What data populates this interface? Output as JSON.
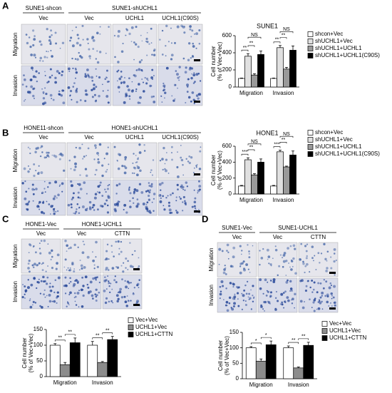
{
  "panels": [
    {
      "letter": "A",
      "groups": [
        "SUNE1-shcon",
        "SUNE1-shUCHL1"
      ],
      "columns": [
        "Vec",
        "Vec",
        "UCHL1",
        "UCHL1(C90S)"
      ],
      "rows": [
        "Migration",
        "Invasion"
      ]
    },
    {
      "letter": "B",
      "groups": [
        "HONE11-shcon",
        "HONE1-shUCHL1"
      ],
      "columns": [
        "Vec",
        "Vec",
        "UCHL1",
        "UCHL1(C90S)"
      ],
      "rows": [
        "Migration",
        "Invasion"
      ]
    },
    {
      "letter": "C",
      "groups": [
        "HONE1-Vec",
        "HONE1-UCHL1"
      ],
      "columns": [
        "Vec",
        "Vec",
        "CTTN"
      ],
      "rows": [
        "Migration",
        "Invasion"
      ]
    },
    {
      "letter": "D",
      "groups": [
        "SUNE1-Vec",
        "SUNE1-UCHL1"
      ],
      "columns": [
        "Vec",
        "Vec",
        "CTTN"
      ],
      "rows": [
        "Migration",
        "Invasion"
      ]
    }
  ],
  "chart_data": [
    {
      "type": "bar",
      "title": "SUNE1",
      "ylabel": [
        "Cell number",
        "(% of Vec+Vec)"
      ],
      "categories": [
        "Migration",
        "Invasion"
      ],
      "ylim": [
        0,
        600
      ],
      "yticks": [
        0,
        200,
        400,
        600
      ],
      "series": [
        {
          "name": "shcon+Vec",
          "color": "#ffffff",
          "values": [
            100,
            100
          ],
          "errors": [
            5,
            5
          ]
        },
        {
          "name": "shUCHL1+Vec",
          "color": "#e0e0e0",
          "values": [
            360,
            460
          ],
          "errors": [
            30,
            25
          ]
        },
        {
          "name": "shUCHL1+UCHL1",
          "color": "#9a9a9a",
          "values": [
            140,
            210
          ],
          "errors": [
            15,
            20
          ]
        },
        {
          "name": "shUCHL1+UCHL1(C90S)",
          "color": "#000000",
          "values": [
            380,
            430
          ],
          "errors": [
            40,
            50
          ]
        }
      ],
      "annotations": [
        "**",
        "**",
        "NS",
        "**",
        "**",
        "NS"
      ]
    },
    {
      "type": "bar",
      "title": "HONE1",
      "ylabel": [
        "Cell number",
        "(% of Vec+Vec)"
      ],
      "categories": [
        "Migration",
        "Invasion"
      ],
      "ylim": [
        0,
        600
      ],
      "yticks": [
        0,
        200,
        400,
        600
      ],
      "series": [
        {
          "name": "shcon+Vec",
          "color": "#ffffff",
          "values": [
            100,
            100
          ],
          "errors": [
            8,
            8
          ]
        },
        {
          "name": "shUCHL1+Vec",
          "color": "#e0e0e0",
          "values": [
            430,
            530
          ],
          "errors": [
            25,
            20
          ]
        },
        {
          "name": "shUCHL1+UCHL1",
          "color": "#9a9a9a",
          "values": [
            240,
            340
          ],
          "errors": [
            15,
            10
          ]
        },
        {
          "name": "shUCHL1+UCHL1(C90S)",
          "color": "#000000",
          "values": [
            400,
            490
          ],
          "errors": [
            40,
            50
          ]
        }
      ],
      "annotations": [
        "***",
        "**",
        "NS",
        "***",
        "**",
        "NS"
      ]
    },
    {
      "type": "bar",
      "ylabel": [
        "Cell number",
        "(% of Vec+Vec)"
      ],
      "categories": [
        "Migration",
        "Invasion"
      ],
      "ylim": [
        0,
        150
      ],
      "yticks": [
        0,
        50,
        100,
        150
      ],
      "series": [
        {
          "name": "Vec+Vec",
          "color": "#ffffff",
          "values": [
            100,
            100
          ],
          "errors": [
            5,
            12
          ]
        },
        {
          "name": "UCHL1+Vec",
          "color": "#8c8c8c",
          "values": [
            38,
            45
          ],
          "errors": [
            7,
            3
          ]
        },
        {
          "name": "UCHL1+CTTN",
          "color": "#000000",
          "values": [
            108,
            118
          ],
          "errors": [
            15,
            10
          ]
        }
      ],
      "annotations": [
        "**",
        "**",
        "**",
        "**"
      ]
    },
    {
      "type": "bar",
      "ylabel": [
        "Cell number",
        "(% of Vec+Vec)"
      ],
      "categories": [
        "Migration",
        "Invasion"
      ],
      "ylim": [
        0,
        150
      ],
      "yticks": [
        0,
        50,
        100,
        150
      ],
      "series": [
        {
          "name": "Vec+Vec",
          "color": "#ffffff",
          "values": [
            100,
            100
          ],
          "errors": [
            4,
            6
          ]
        },
        {
          "name": "UCHL1+Vec",
          "color": "#8c8c8c",
          "values": [
            57,
            35
          ],
          "errors": [
            7,
            3
          ]
        },
        {
          "name": "UCHL1+CTTN",
          "color": "#000000",
          "values": [
            110,
            108
          ],
          "errors": [
            12,
            10
          ]
        }
      ],
      "annotations": [
        "*",
        "*",
        "**",
        "**"
      ]
    }
  ]
}
